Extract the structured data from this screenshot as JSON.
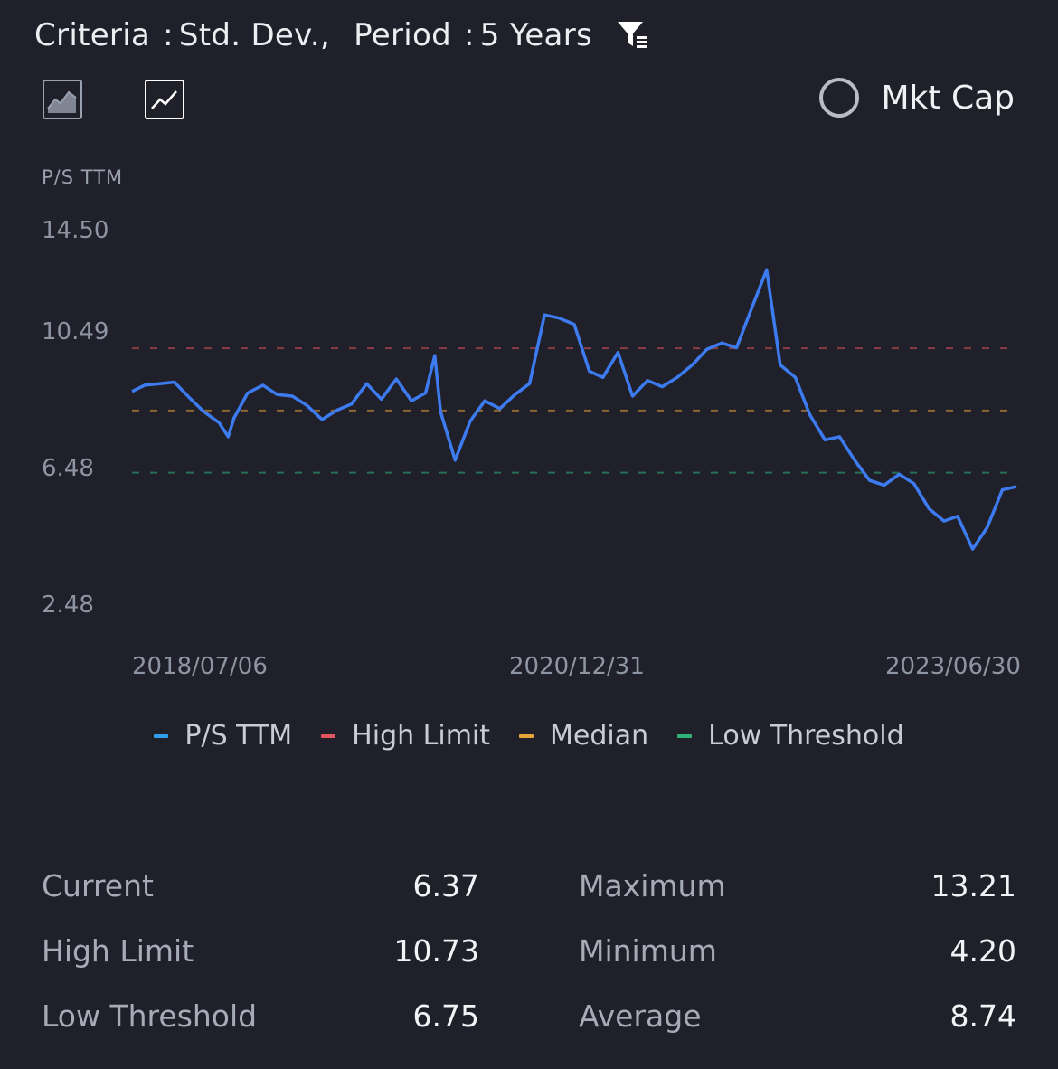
{
  "header": {
    "criteria_label": "Criteria",
    "criteria_value": "Std. Dev.,",
    "period_label": "Period",
    "period_value": "5 Years",
    "separator": ":"
  },
  "toggle": {
    "mkt_cap_label": "Mkt Cap",
    "selected": false
  },
  "icons": [
    "area-chart-icon",
    "line-chart-icon",
    "filter-icon"
  ],
  "colors": {
    "background": "#1f2029",
    "series": "#3d7bf0",
    "high_limit": "#e05560",
    "median": "#e6a43a",
    "low_threshold": "#2fb37a"
  },
  "chart_data": {
    "type": "line",
    "ylabel": "P/S  TTM",
    "yticks": [
      "14.50",
      "10.49",
      "6.48",
      "2.48"
    ],
    "ylim": [
      2.48,
      14.5
    ],
    "xticks": [
      "2018/07/06",
      "2020/12/31",
      "2023/06/30"
    ],
    "x_range": [
      "2018/07/06",
      "2023/06/30"
    ],
    "reference_lines": {
      "high_limit": 10.73,
      "median": 8.74,
      "low_threshold": 6.75
    },
    "series": [
      {
        "name": "P/S  TTM",
        "x": [
          "2018/07/06",
          "2018/08/01",
          "2018/09/01",
          "2018/10/01",
          "2018/11/01",
          "2018/12/01",
          "2019/01/01",
          "2019/01/20",
          "2019/02/01",
          "2019/03/01",
          "2019/04/01",
          "2019/05/01",
          "2019/06/01",
          "2019/07/01",
          "2019/08/01",
          "2019/09/01",
          "2019/10/01",
          "2019/11/01",
          "2019/12/01",
          "2020/01/01",
          "2020/02/01",
          "2020/03/01",
          "2020/03/20",
          "2020/04/01",
          "2020/05/01",
          "2020/06/01",
          "2020/07/01",
          "2020/08/01",
          "2020/09/01",
          "2020/10/01",
          "2020/11/01",
          "2020/12/01",
          "2021/01/01",
          "2021/02/01",
          "2021/03/01",
          "2021/04/01",
          "2021/05/01",
          "2021/06/01",
          "2021/07/01",
          "2021/08/01",
          "2021/09/01",
          "2021/10/01",
          "2021/11/01",
          "2021/12/01",
          "2022/01/01",
          "2022/02/01",
          "2022/03/01",
          "2022/04/01",
          "2022/05/01",
          "2022/06/01",
          "2022/07/01",
          "2022/08/01",
          "2022/09/01",
          "2022/10/01",
          "2022/11/01",
          "2022/12/01",
          "2023/01/01",
          "2023/02/01",
          "2023/03/01",
          "2023/04/01",
          "2023/05/01",
          "2023/06/01",
          "2023/06/30"
        ],
        "values": [
          9.35,
          9.55,
          9.6,
          9.65,
          9.15,
          8.7,
          8.35,
          7.9,
          8.5,
          9.3,
          9.55,
          9.25,
          9.2,
          8.9,
          8.45,
          8.75,
          8.95,
          9.6,
          9.1,
          9.75,
          9.05,
          9.3,
          10.5,
          8.7,
          7.15,
          8.4,
          9.05,
          8.8,
          9.25,
          9.6,
          11.8,
          11.7,
          11.5,
          10.0,
          9.8,
          10.6,
          9.2,
          9.7,
          9.5,
          9.8,
          10.2,
          10.7,
          10.9,
          10.75,
          12.0,
          13.25,
          10.2,
          9.8,
          8.6,
          7.8,
          7.9,
          7.15,
          6.5,
          6.35,
          6.7,
          6.4,
          5.6,
          5.2,
          5.35,
          4.3,
          5.0,
          6.2,
          6.3
        ]
      }
    ]
  },
  "legend": [
    {
      "label": "P/S  TTM",
      "color": "#2f9ff0"
    },
    {
      "label": "High Limit",
      "color": "#e05560"
    },
    {
      "label": "Median",
      "color": "#e6a43a"
    },
    {
      "label": "Low Threshold",
      "color": "#2fb37a"
    }
  ],
  "stats": {
    "left": [
      {
        "label": "Current",
        "value": "6.37"
      },
      {
        "label": "High Limit",
        "value": "10.73"
      },
      {
        "label": "Low Threshold",
        "value": "6.75"
      }
    ],
    "right": [
      {
        "label": "Maximum",
        "value": "13.21"
      },
      {
        "label": "Minimum",
        "value": "4.20"
      },
      {
        "label": "Average",
        "value": "8.74"
      }
    ]
  }
}
